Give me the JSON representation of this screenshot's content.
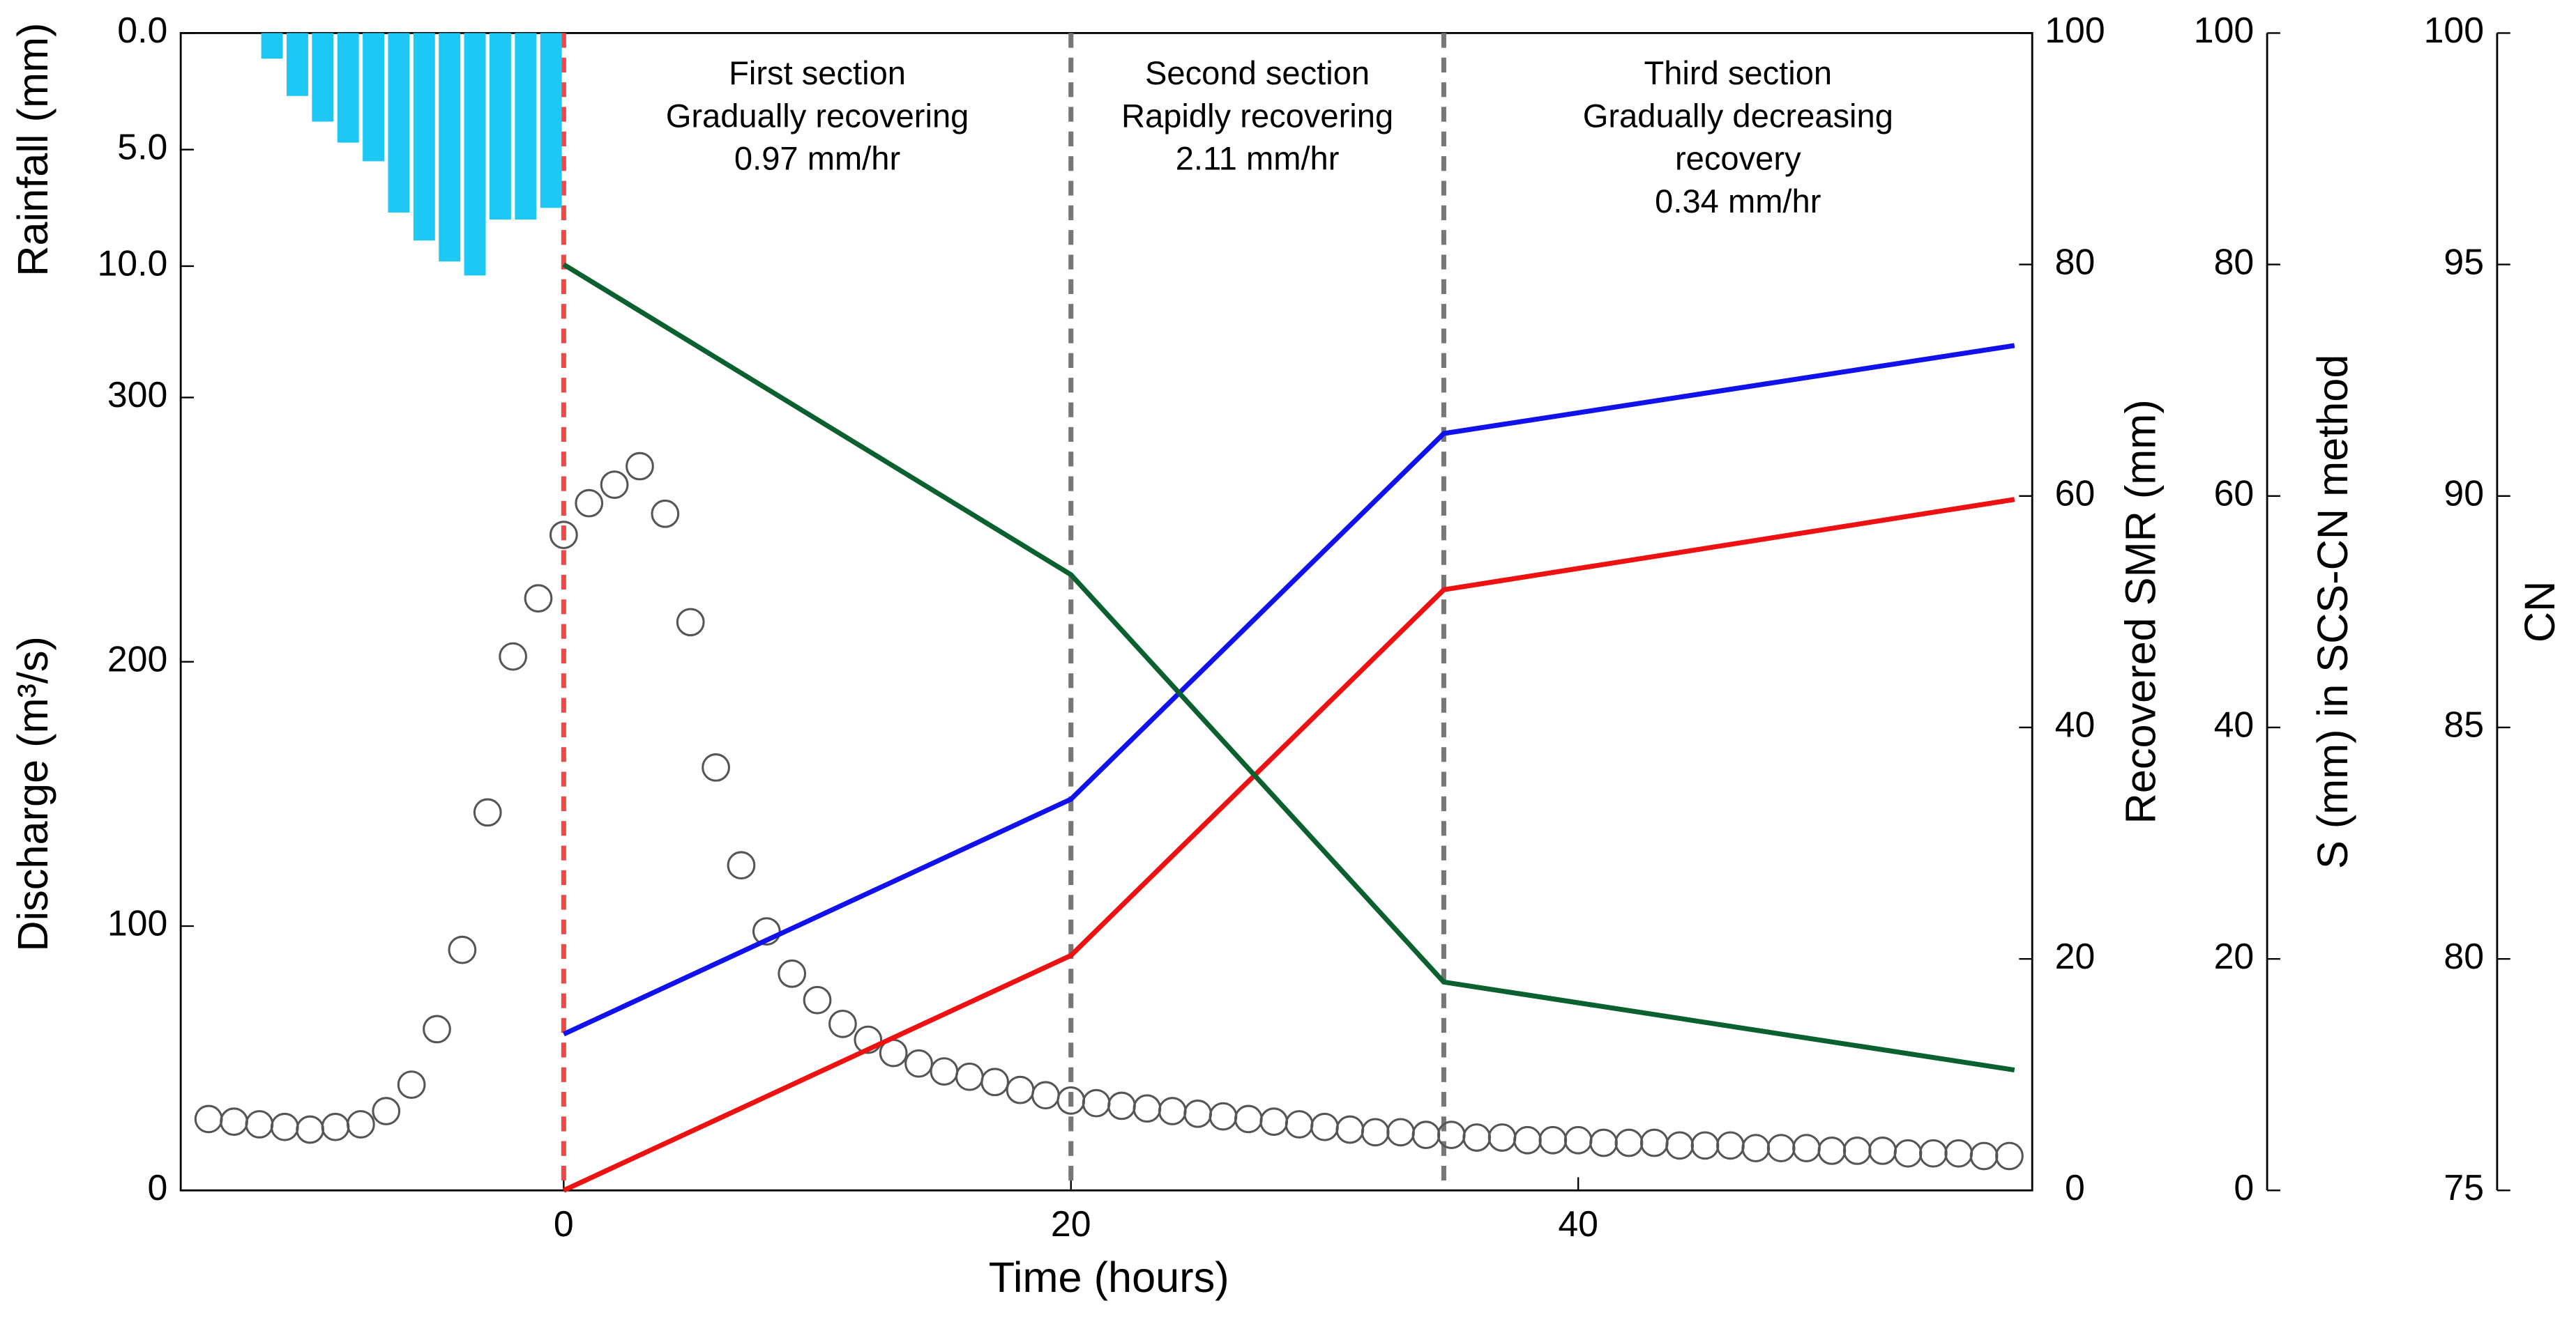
{
  "chart_data": {
    "type": "combo",
    "x_label": "Time (hours)",
    "xlim": [
      -15.1,
      57.9
    ],
    "xticks": [
      0,
      20,
      40
    ],
    "axes": [
      {
        "label": "Rainfall (mm)",
        "color": "#000000",
        "lim": [
          0,
          12
        ],
        "inverted": true,
        "ticks": [
          {
            "value": 0,
            "label": "0.0"
          },
          {
            "value": 5,
            "label": "5.0"
          },
          {
            "value": 10,
            "label": "10.0"
          }
        ]
      },
      {
        "label": "Discharge (m³/s)",
        "color": "#000000",
        "lim": [
          0,
          300
        ],
        "ticks": [
          0,
          100,
          200,
          300
        ]
      },
      {
        "label": "Recovered SMR (mm)",
        "color": "#ee1111",
        "lim": [
          0,
          100
        ],
        "ticks": [
          0,
          20,
          40,
          60,
          80,
          100
        ]
      },
      {
        "label": "S (mm) in SCS-CN method",
        "color": "#1111ee",
        "lim": [
          0,
          100
        ],
        "ticks": [
          0,
          20,
          40,
          60,
          80,
          100
        ]
      },
      {
        "label": "CN",
        "color": "#0b6030",
        "lim": [
          75,
          100
        ],
        "ticks": [
          75,
          80,
          85,
          90,
          95,
          100
        ]
      }
    ],
    "series": [
      {
        "type": "bar",
        "axis": 0,
        "color": "#1ec8f5",
        "x": [
          -11.5,
          -10.5,
          -9.5,
          -8.5,
          -7.5,
          -6.5,
          -5.5,
          -4.5,
          -3.5,
          -2.5,
          -1.5,
          -0.5
        ],
        "values": [
          1.1,
          2.7,
          3.8,
          4.7,
          5.5,
          7.7,
          8.9,
          9.8,
          10.4,
          8.0,
          8.0,
          7.5
        ]
      },
      {
        "type": "scatter",
        "axis": 1,
        "color": "#555555",
        "x": [
          -14,
          -13,
          -12,
          -11,
          -10,
          -9,
          -8,
          -7,
          -6,
          -5,
          -4,
          -3,
          -2,
          -1,
          0,
          1,
          2,
          3,
          4,
          5,
          6,
          7,
          8,
          9,
          10,
          11,
          12,
          13,
          14,
          15,
          16,
          17,
          18,
          19,
          20,
          21,
          22,
          23,
          24,
          25,
          26,
          27,
          28,
          29,
          30,
          31,
          32,
          33,
          34,
          35,
          36,
          37,
          38,
          39,
          40,
          41,
          42,
          43,
          44,
          45,
          46,
          47,
          48,
          49,
          50,
          51,
          52,
          53,
          54,
          55,
          56,
          57
        ],
        "values": [
          27,
          26,
          25,
          24,
          23,
          24,
          25,
          30,
          40,
          61,
          91,
          143,
          202,
          224,
          248,
          260,
          267,
          274,
          256,
          215,
          160,
          123,
          98,
          82,
          72,
          63,
          57,
          52,
          48,
          45,
          43,
          41,
          38,
          36,
          34,
          33,
          32,
          31,
          30,
          29,
          28,
          27,
          26,
          25,
          24,
          23,
          22,
          22,
          21,
          21,
          20,
          20,
          19,
          19,
          19,
          18,
          18,
          18,
          17,
          17,
          17,
          16,
          16,
          16,
          15,
          15,
          15,
          14,
          14,
          14,
          13,
          13
        ]
      },
      {
        "type": "line",
        "axis": 2,
        "color": "#ee1111",
        "x": [
          0,
          20,
          34.7,
          57.2
        ],
        "values": [
          0,
          20.3,
          51.9,
          59.7
        ]
      },
      {
        "type": "line",
        "axis": 3,
        "color": "#1111ee",
        "x": [
          0,
          20,
          34.7,
          57.2
        ],
        "values": [
          13.5,
          33.8,
          65.4,
          73
        ]
      },
      {
        "type": "line",
        "axis": 4,
        "color": "#0b6030",
        "x": [
          0,
          20,
          34.7,
          57.2
        ],
        "values": [
          95,
          88.3,
          79.5,
          77.6
        ]
      }
    ],
    "vlines": [
      {
        "x": 0,
        "color": "#f04848"
      },
      {
        "x": 20,
        "color": "#777777"
      },
      {
        "x": 34.7,
        "color": "#777777"
      }
    ],
    "annotations": [
      {
        "lines": [
          "First section",
          "Gradually recovering",
          "0.97 mm/hr"
        ]
      },
      {
        "lines": [
          "Second section",
          "Rapidly recovering",
          "2.11 mm/hr"
        ]
      },
      {
        "lines": [
          "Third section",
          "Gradually decreasing",
          "recovery",
          "0.34 mm/hr"
        ]
      }
    ]
  }
}
